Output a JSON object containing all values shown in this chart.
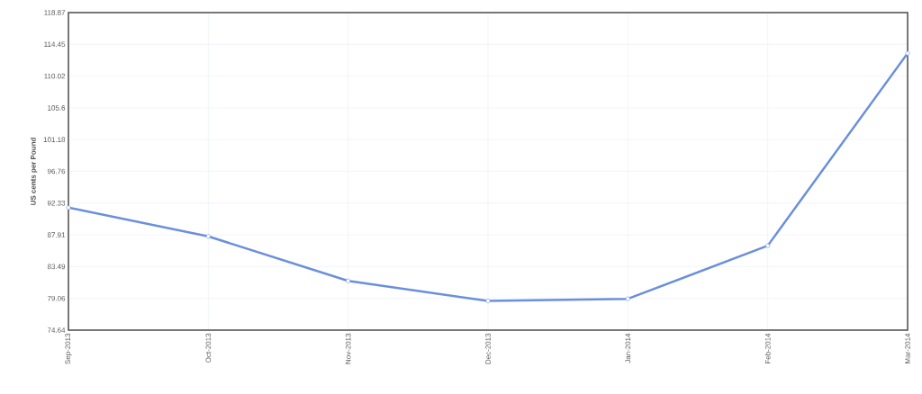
{
  "chart_data": {
    "type": "line",
    "ylabel": "**US cents per Pound**",
    "categories": [
      "Sep-2013",
      "Oct-2013",
      "Nov-2013",
      "Dec-2013",
      "Jan-2014",
      "Feb-2014",
      "Mar-2014"
    ],
    "series": [
      {
        "color": "#6a8fdc",
        "values": [
          91.7,
          87.7,
          81.5,
          78.7,
          79.0,
          86.4,
          113.2
        ]
      }
    ],
    "ylim": [
      74.64,
      118.87
    ],
    "yticks": [
      74.64,
      79.06,
      83.49,
      87.91,
      92.33,
      96.76,
      101.18,
      105.6,
      110.02,
      114.45,
      118.87
    ],
    "grid": true,
    "marker": "circle",
    "line_style": "solid"
  }
}
